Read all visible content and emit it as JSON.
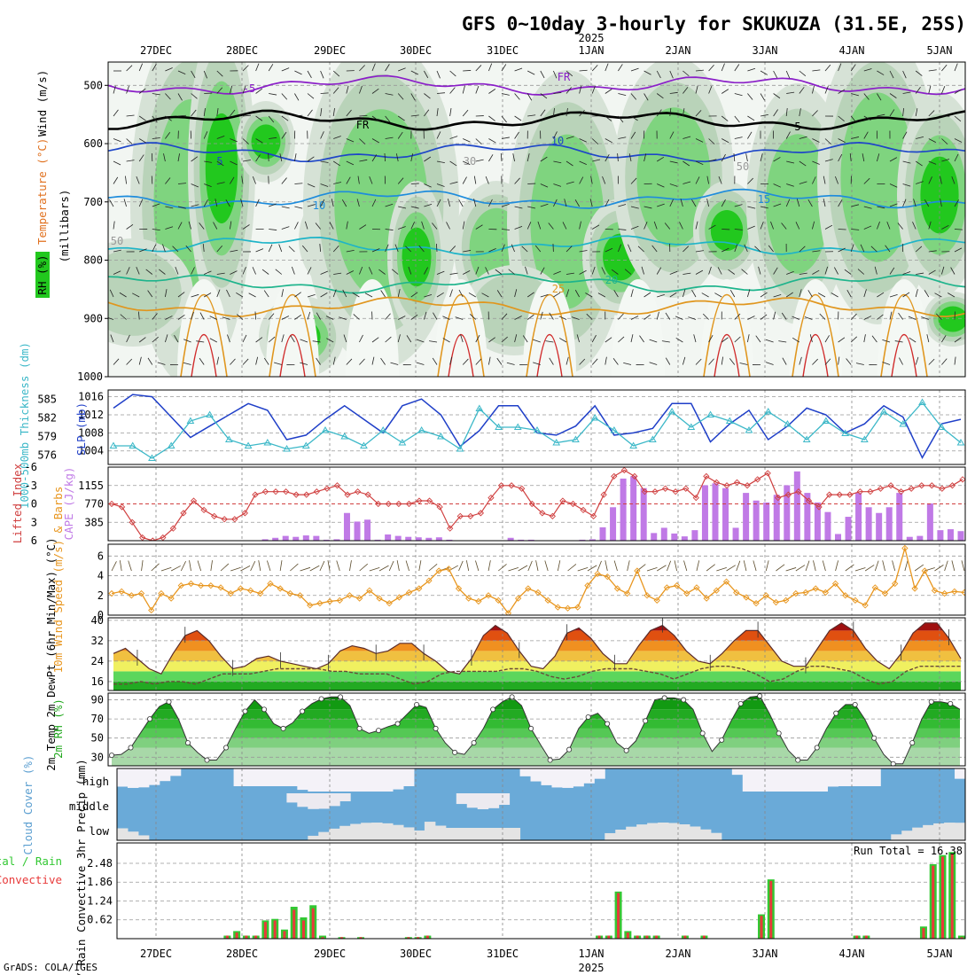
{
  "title": "GFS 0~10day 3-hourly for SKUKUZA (31.5E, 25S)",
  "year_label": "2025",
  "credit": "GrADS: COLA/IGES",
  "date_ticks": [
    "27DEC",
    "28DEC",
    "29DEC",
    "30DEC",
    "31DEC",
    "1JAN",
    "2JAN",
    "3JAN",
    "4JAN",
    "5JAN"
  ],
  "colors": {
    "rh": "#22c81e",
    "slp": "#1f3fc8",
    "thickness": "#3cb8c8",
    "cape": "#c07ae6",
    "lifted": "#d04040",
    "wind": "#e8961e",
    "precip_total": "#33c833",
    "precip_conv": "#e83a3a",
    "cloud": "#6aaad8"
  },
  "chart_data": [
    {
      "type": "heatmap",
      "ylabel": "(millibars)",
      "ylabel_parts": [
        {
          "text": "RH (%)",
          "color": "#22c81e"
        },
        {
          "text": "Temperature (°C)",
          "color": "#e0701e"
        },
        {
          "text": "Wind (m/s)",
          "color": "#000000"
        }
      ],
      "y_ticks": [
        500,
        600,
        700,
        800,
        900,
        1000
      ],
      "ylim": [
        460,
        1000
      ],
      "contour_labels": [
        "-5",
        "FR",
        "FR",
        "5",
        "5",
        "10",
        "10",
        "15",
        "20",
        "25",
        "30",
        "50",
        "50"
      ],
      "isotherms": [
        {
          "label": "-5",
          "color": "#8a1ec8",
          "p": 500
        },
        {
          "label": "FR",
          "color": "#000000",
          "p": 560
        },
        {
          "label": "5",
          "color": "#1e46c8",
          "p": 615
        },
        {
          "label": "10",
          "color": "#1e8cdc",
          "p": 695
        },
        {
          "label": "15",
          "color": "#1eb4c8",
          "p": 775
        },
        {
          "label": "20",
          "color": "#1eb48c",
          "p": 840
        },
        {
          "label": "25",
          "color": "#e0961e",
          "p": 880
        }
      ]
    },
    {
      "type": "line",
      "ylabel_left": "1000-500mb Thickness (dm)",
      "ylabel_right": "SLP (mb)",
      "yticks_left": [
        576,
        579,
        582,
        585
      ],
      "yticks_right": [
        1004,
        1008,
        1012,
        1016
      ],
      "ylim_left": [
        574.5,
        586.5
      ],
      "ylim_right": [
        1001,
        1017.5
      ],
      "series": [
        {
          "name": "SLP (mb)",
          "axis": "right",
          "values": [
            1013.5,
            1016.5,
            1016,
            1011.5,
            1007,
            1009.5,
            1012,
            1014.5,
            1013,
            1006.5,
            1007.5,
            1011,
            1014,
            1011,
            1008,
            1014,
            1015.5,
            1012,
            1005,
            1008.5,
            1014,
            1014,
            1008,
            1007.5,
            1009.5,
            1014,
            1007.5,
            1008,
            1009,
            1014.5,
            1014.5,
            1006,
            1010,
            1013,
            1006.5,
            1009.5,
            1013.5,
            1012,
            1008,
            1010,
            1014,
            1011.5,
            1002.5,
            1010,
            1011
          ]
        },
        {
          "name": "1000-500mb Thickness (dm)",
          "axis": "left",
          "values": [
            577.5,
            577.5,
            575.5,
            577.5,
            581.5,
            582.5,
            578.5,
            577.5,
            578,
            577,
            577.5,
            580,
            579,
            577.5,
            580,
            578,
            580,
            579,
            577,
            583.5,
            580.5,
            580.5,
            580,
            578,
            578.5,
            582,
            580,
            577.5,
            578.5,
            583,
            580.5,
            582.5,
            581.5,
            580,
            583,
            581,
            578.5,
            581.5,
            579.5,
            578.5,
            583,
            581,
            584.5,
            580.5,
            578
          ]
        }
      ]
    },
    {
      "type": "bar",
      "ylabel_left": "Lifted Index",
      "ylabel_right": "CAPE (J/kg)",
      "yticks_left": [
        -6,
        -3,
        0,
        3,
        6
      ],
      "yticks_right": [
        385,
        770,
        1155
      ],
      "ylim_left": [
        6,
        -6
      ],
      "ylim_right": [
        0,
        1540
      ],
      "series": [
        {
          "name": "CAPE (J/kg)",
          "type": "bar",
          "values": [
            0,
            0,
            0,
            0,
            0,
            0,
            0,
            0,
            0,
            0,
            0,
            0,
            0,
            0,
            0,
            30,
            60,
            100,
            80,
            110,
            100,
            20,
            30,
            580,
            400,
            440,
            20,
            130,
            100,
            80,
            70,
            60,
            70,
            20,
            0,
            0,
            0,
            0,
            0,
            60,
            20,
            20,
            0,
            0,
            0,
            0,
            20,
            30,
            280,
            700,
            1300,
            1350,
            1100,
            160,
            270,
            150,
            90,
            220,
            1160,
            1200,
            1100,
            270,
            1000,
            840,
            800,
            960,
            1160,
            1450,
            1000,
            800,
            600,
            140,
            500,
            1000,
            700,
            580,
            700,
            1000,
            80,
            100,
            780,
            220,
            240,
            200
          ]
        },
        {
          "name": "Lifted Index",
          "type": "line",
          "values": [
            0,
            0.5,
            3,
            5.5,
            6,
            5.5,
            4,
            1.5,
            -0.5,
            1,
            2,
            2.5,
            2.5,
            1.5,
            -1.5,
            -2,
            -2,
            -2,
            -1.5,
            -1.5,
            -2,
            -2.5,
            -3,
            -1.5,
            -2,
            -1.5,
            0,
            0,
            0,
            0,
            -0.5,
            -0.5,
            0.5,
            4,
            2,
            2,
            1.5,
            -1,
            -3,
            -3,
            -2.5,
            0,
            1.5,
            2,
            -0.5,
            0,
            1,
            2,
            -1.5,
            -4.5,
            -5.5,
            -4.5,
            -2,
            -2,
            -2.5,
            -2,
            -2.5,
            -1,
            -4.5,
            -3.5,
            -3,
            -3.5,
            -3,
            -4,
            -5,
            -1,
            -1.5,
            -2,
            -0.5,
            0.5,
            -1.5,
            -1.5,
            -1.5,
            -2,
            -2,
            -2.5,
            -3,
            -2,
            -2.5,
            -3,
            -3,
            -2.5,
            -3,
            -4
          ]
        }
      ]
    },
    {
      "type": "line",
      "ylabel": "10m Wind Speed (m/s) & Barbs",
      "yticks": [
        0,
        2,
        4,
        6
      ],
      "ylim": [
        0,
        7.2
      ],
      "series": [
        {
          "name": "10m Wind Speed",
          "values": [
            2.2,
            2.4,
            2,
            2.2,
            0.5,
            2.2,
            1.7,
            3,
            3.2,
            3,
            3,
            2.8,
            2.2,
            2.7,
            2.5,
            2.2,
            3.2,
            2.7,
            2.2,
            2,
            1,
            1.2,
            1.4,
            1.5,
            2,
            1.7,
            2.5,
            1.7,
            1.2,
            1.8,
            2.3,
            2.7,
            3.5,
            4.5,
            4.7,
            2.7,
            1.7,
            1.4,
            2,
            1.5,
            0.2,
            1.7,
            2.7,
            2.3,
            1.5,
            0.8,
            0.7,
            0.8,
            3,
            4.2,
            3.9,
            2.7,
            2.2,
            4.5,
            2,
            1.5,
            2.8,
            3,
            2.2,
            2.8,
            1.7,
            2.5,
            3.4,
            2.3,
            1.8,
            1.2,
            2,
            1.3,
            1.5,
            2.2,
            2.3,
            2.7,
            2.3,
            3.2,
            2,
            1.5,
            1,
            2.8,
            2.2,
            3.2,
            6.8,
            2.7,
            4.5,
            2.5,
            2.2,
            2.4,
            2.3
          ]
        }
      ]
    },
    {
      "type": "area",
      "ylabel": "2m Temp 2m DewPt (6hr Min/Max) (°C)",
      "yticks": [
        16,
        24,
        32,
        40
      ],
      "ylim": [
        12.5,
        41
      ],
      "series": [
        {
          "name": "2m Temp",
          "values": [
            27,
            29,
            25,
            21,
            19,
            27,
            34,
            36,
            32,
            26,
            21,
            22,
            25,
            26,
            24,
            23,
            22,
            21,
            23,
            28,
            30,
            29,
            27,
            28,
            31,
            31,
            27,
            24,
            20,
            19,
            25,
            34,
            38,
            35,
            28,
            22,
            21,
            26,
            35,
            37,
            33,
            27,
            23,
            23,
            30,
            36,
            38,
            34,
            28,
            24,
            23,
            27,
            32,
            36,
            36,
            30,
            24,
            22,
            22,
            29,
            36,
            39,
            36,
            29,
            24,
            21,
            27,
            35,
            39,
            39,
            33,
            25
          ]
        },
        {
          "name": "2m DewPt",
          "values": [
            15,
            15,
            16,
            15,
            16,
            16,
            15,
            17,
            19,
            19,
            19,
            20,
            21,
            21,
            21,
            21,
            20,
            20,
            19,
            19,
            19,
            17,
            15,
            16,
            19,
            20,
            20,
            20,
            20,
            21,
            21,
            20,
            18,
            17,
            18,
            20,
            21,
            21,
            21,
            20,
            19,
            17,
            19,
            21,
            22,
            22,
            21,
            19,
            16,
            17,
            20,
            22,
            22,
            21,
            20,
            17,
            15,
            16,
            20,
            22,
            22,
            22,
            22
          ]
        }
      ]
    },
    {
      "type": "area",
      "ylabel": "2m RH (%)",
      "yticks": [
        30,
        50,
        70,
        90
      ],
      "ylim": [
        21,
        97
      ],
      "series": [
        {
          "name": "2m RH",
          "values": [
            32,
            33,
            40,
            55,
            70,
            83,
            88,
            70,
            45,
            35,
            27,
            27,
            40,
            60,
            78,
            90,
            80,
            65,
            60,
            66,
            78,
            86,
            91,
            93,
            93,
            84,
            60,
            55,
            58,
            62,
            65,
            75,
            85,
            82,
            60,
            45,
            35,
            33,
            45,
            60,
            80,
            88,
            93,
            84,
            60,
            43,
            27,
            28,
            38,
            60,
            72,
            76,
            65,
            45,
            37,
            47,
            68,
            90,
            92,
            92,
            90,
            80,
            55,
            36,
            48,
            68,
            86,
            93,
            94,
            76,
            55,
            37,
            27,
            27,
            40,
            60,
            76,
            85,
            85,
            70,
            50,
            33,
            23,
            23,
            45,
            70,
            88,
            88,
            86,
            80
          ]
        }
      ]
    },
    {
      "type": "bar",
      "ylabel": "Cloud Cover (%)",
      "categories": [
        "high",
        "middle",
        "low"
      ]
    },
    {
      "type": "bar",
      "ylabel": "Total / Rain Convective 3hr Precip (mm)",
      "legend": [
        "Total / Rain",
        "Convective"
      ],
      "annotation": "Run Total = 16.38",
      "yticks": [
        0.62,
        1.24,
        1.86,
        2.48
      ],
      "ylim": [
        0,
        2.8
      ],
      "series": [
        {
          "name": "Total / Rain",
          "values": [
            0,
            0,
            0,
            0,
            0,
            0,
            0,
            0,
            0,
            0,
            0,
            0.1,
            0.25,
            0.1,
            0.1,
            0.6,
            0.65,
            0.3,
            1.05,
            0.7,
            1.1,
            0.1,
            0,
            0.05,
            0,
            0.05,
            0,
            0,
            0,
            0,
            0.05,
            0.05,
            0.1,
            0,
            0,
            0,
            0,
            0,
            0,
            0,
            0,
            0,
            0,
            0,
            0,
            0,
            0,
            0,
            0,
            0,
            0.1,
            0.1,
            1.55,
            0.25,
            0.1,
            0.1,
            0.1,
            0,
            0,
            0.1,
            0,
            0.1,
            0,
            0,
            0,
            0,
            0,
            0.8,
            1.95,
            0,
            0,
            0,
            0,
            0,
            0,
            0,
            0,
            0.1,
            0.1,
            0,
            0,
            0,
            0,
            0,
            0.4,
            2.45,
            2.75,
            2.85,
            0.1
          ]
        },
        {
          "name": "Convective",
          "values": [
            0,
            0,
            0,
            0,
            0,
            0,
            0,
            0,
            0,
            0,
            0,
            0.1,
            0.2,
            0.1,
            0.1,
            0.55,
            0.6,
            0.25,
            0.95,
            0.6,
            1,
            0.05,
            0,
            0.05,
            0,
            0.05,
            0,
            0,
            0,
            0,
            0.05,
            0.05,
            0.1,
            0,
            0,
            0,
            0,
            0,
            0,
            0,
            0,
            0,
            0,
            0,
            0,
            0,
            0,
            0,
            0,
            0,
            0.1,
            0.1,
            1.5,
            0.2,
            0.1,
            0.1,
            0.1,
            0,
            0,
            0.1,
            0,
            0.1,
            0,
            0,
            0,
            0,
            0,
            0.75,
            1.9,
            0,
            0,
            0,
            0,
            0,
            0,
            0,
            0,
            0.1,
            0.1,
            0,
            0,
            0,
            0,
            0,
            0.35,
            2.4,
            2.7,
            2.8,
            0.05
          ]
        }
      ]
    }
  ]
}
